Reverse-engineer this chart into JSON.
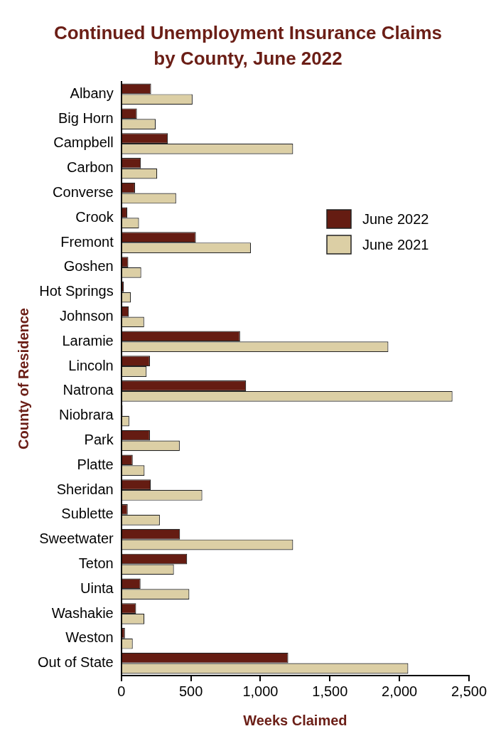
{
  "chart_data": {
    "type": "bar",
    "orientation": "horizontal",
    "title": "Continued Unemployment Insurance Claims by County, June 2022",
    "xlabel": "Weeks Claimed",
    "ylabel": "County of Residence",
    "categories": [
      "Albany",
      "Big Horn",
      "Campbell",
      "Carbon",
      "Converse",
      "Crook",
      "Fremont",
      "Goshen",
      "Hot Springs",
      "Johnson",
      "Laramie",
      "Lincoln",
      "Natrona",
      "Niobrara",
      "Park",
      "Platte",
      "Sheridan",
      "Sublette",
      "Sweetwater",
      "Teton",
      "Uinta",
      "Washakie",
      "Weston",
      "Out of State"
    ],
    "series": [
      {
        "name": "June 2022",
        "color": "#651c12",
        "values": [
          214,
          112,
          335,
          141,
          99,
          43,
          536,
          50,
          18,
          54,
          854,
          206,
          897,
          9,
          206,
          82,
          212,
          46,
          422,
          473,
          138,
          106,
          26,
          1200
        ]
      },
      {
        "name": "June 2021",
        "color": "#dccfa5",
        "values": [
          512,
          247,
          1235,
          258,
          394,
          127,
          932,
          143,
          69,
          164,
          1920,
          182,
          2381,
          57,
          420,
          167,
          582,
          277,
          1235,
          378,
          489,
          166,
          82,
          2063
        ]
      }
    ],
    "xlim": [
      0,
      2500
    ],
    "xticks": [
      0,
      500,
      {
        "value": 1000,
        "label": "1,000"
      },
      {
        "value": 1500,
        "label": "1,500"
      },
      {
        "value": 2000,
        "label": "2,000"
      },
      {
        "value": 2500,
        "label": "2,500"
      }
    ],
    "legend": "right"
  }
}
